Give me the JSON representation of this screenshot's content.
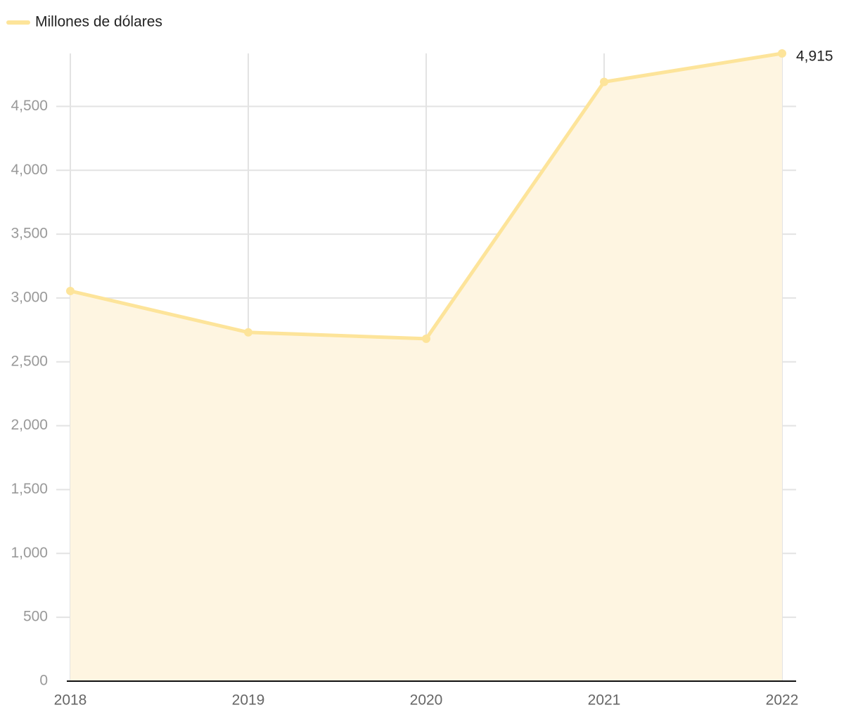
{
  "chart_data": {
    "type": "area-line",
    "categories": [
      "2018",
      "2019",
      "2020",
      "2021",
      "2022"
    ],
    "series": [
      {
        "name": "Millones de dólares",
        "color": "#fde49a",
        "fill": "#fef5e1",
        "values": [
          3055,
          2731,
          2681,
          4692,
          4915
        ],
        "value_labels": [
          null,
          null,
          null,
          null,
          "4,915"
        ]
      }
    ],
    "ylim": [
      0,
      4915
    ],
    "yticks": [
      0,
      500,
      {
        "value": 1000,
        "label": "1,000"
      },
      {
        "value": 1500,
        "label": "1,500"
      },
      {
        "value": 2000,
        "label": "2,000"
      },
      {
        "value": 2500,
        "label": "2,500"
      },
      {
        "value": 3000,
        "label": "3,000"
      },
      {
        "value": 3500,
        "label": "3,500"
      },
      {
        "value": 4000,
        "label": "4,000"
      },
      {
        "value": 4500,
        "label": "4,500"
      }
    ],
    "grid": true,
    "legend": "top-left"
  }
}
